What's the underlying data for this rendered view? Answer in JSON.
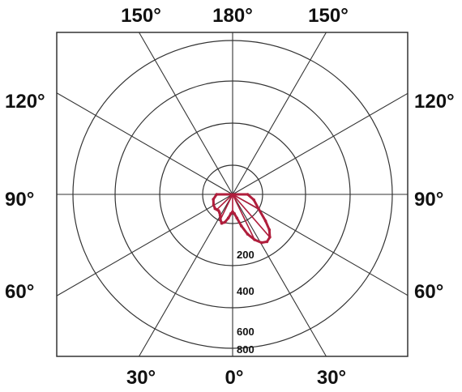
{
  "chart_data": {
    "type": "polar",
    "angle_labels": {
      "top_left": "150°",
      "top_center": "180°",
      "top_right": "150°",
      "left_upper": "120°",
      "right_upper": "120°",
      "left_mid": "90°",
      "right_mid": "90°",
      "left_lower": "60°",
      "right_lower": "60°",
      "bottom_left": "30°",
      "bottom_center": "0°",
      "bottom_right": "30°"
    },
    "ring_values": [
      200,
      400,
      600,
      800
    ],
    "ring_labels": [
      "200",
      "400",
      "600",
      "800"
    ],
    "radial_max": 800,
    "spoke_angles_deg": [
      0,
      30,
      60,
      90,
      120,
      150,
      180,
      210,
      240,
      270,
      300,
      330
    ],
    "grid": true,
    "series": [
      {
        "color": "#b01e3c",
        "angles_deg": [
          90,
          75,
          60,
          50,
          45,
          40,
          35,
          30,
          25,
          20,
          15,
          10,
          5,
          0,
          -5,
          -10,
          -15,
          -20,
          -25,
          -30,
          -35,
          -40,
          -45,
          -50,
          -60,
          -75,
          -90
        ],
        "values": [
          75,
          110,
          150,
          215,
          260,
          290,
          300,
          290,
          260,
          220,
          170,
          125,
          100,
          90,
          100,
          125,
          150,
          160,
          145,
          125,
          115,
          110,
          112,
          115,
          110,
          100,
          80
        ]
      }
    ]
  }
}
